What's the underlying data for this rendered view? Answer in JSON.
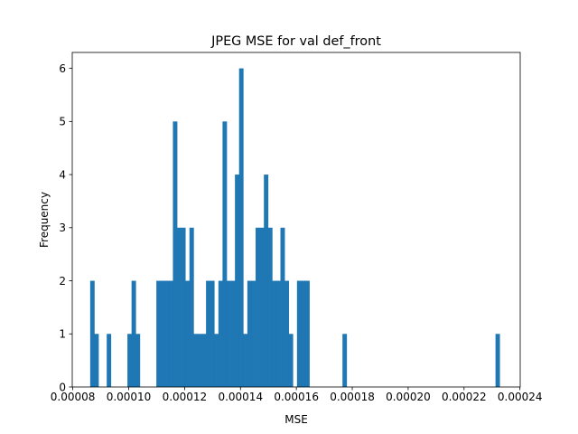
{
  "chart_data": {
    "type": "bar",
    "title": "JPEG MSE for val def_front",
    "xlabel": "MSE",
    "ylabel": "Frequency",
    "xlim": [
      7.98e-05,
      0.0002401
    ],
    "ylim": [
      0,
      6.3
    ],
    "xticks": [
      8e-05,
      0.0001,
      0.00012,
      0.00014,
      0.00016,
      0.00018,
      0.0002,
      0.00022,
      0.00024
    ],
    "xtick_labels": [
      "0.00008",
      "0.00010",
      "0.00012",
      "0.00014",
      "0.00016",
      "0.00018",
      "0.00020",
      "0.00022",
      "0.00024"
    ],
    "yticks": [
      0,
      1,
      2,
      3,
      4,
      5,
      6
    ],
    "ytick_labels": [
      "0",
      "1",
      "2",
      "3",
      "4",
      "5",
      "6"
    ],
    "bar_color": "#1f77b4",
    "bin_width": 1.48e-06,
    "bins_start": [
      8.622e-05,
      8.77e-05,
      8.918e-05,
      9.066e-05,
      9.214e-05,
      9.362e-05,
      9.51e-05,
      9.658e-05,
      9.806e-05,
      9.954e-05,
      0.00010102,
      0.0001025,
      0.00010398,
      0.00010546,
      0.00010694,
      0.00010842,
      0.0001099,
      0.00011138,
      0.00011286,
      0.00011434,
      0.00011582,
      0.0001173,
      0.00011878,
      0.00012026,
      0.00012174,
      0.00012322,
      0.0001247,
      0.00012618,
      0.00012766,
      0.00012914,
      0.00013062,
      0.0001321,
      0.00013358,
      0.00013506,
      0.00013654,
      0.00013802,
      0.0001395,
      0.00014098,
      0.00014246,
      0.00014394,
      0.00014542,
      0.0001469,
      0.00014838,
      0.00014986,
      0.00015134,
      0.00015282,
      0.0001543,
      0.00015578,
      0.00015726,
      0.00015874,
      0.00016022,
      0.0001617,
      0.00016318,
      0.00016466,
      0.00016614,
      0.00016762,
      0.0001691,
      0.00017058,
      0.00017206,
      0.00017354,
      0.00017502,
      0.0001765,
      0.00017798,
      0.00017946,
      0.00018094,
      0.00018242,
      0.0001839,
      0.00018538,
      0.00018686,
      0.00018834,
      0.00018982,
      0.0001913,
      0.00019278,
      0.00019426,
      0.00019574,
      0.00019722,
      0.0001987,
      0.00020018,
      0.00020166,
      0.00020314,
      0.00020462,
      0.0002061,
      0.00020758,
      0.00020906,
      0.00021054,
      0.00021202,
      0.0002135,
      0.00021498,
      0.00021646,
      0.00021794,
      0.00021942,
      0.0002209,
      0.00022238,
      0.00022386,
      0.00022534,
      0.00022682,
      0.0002283,
      0.00022978,
      0.00023126
    ],
    "counts": [
      2,
      1,
      0,
      0,
      1,
      0,
      0,
      0,
      0,
      1,
      2,
      1,
      0,
      0,
      0,
      0,
      2,
      2,
      2,
      2,
      5,
      3,
      3,
      2,
      3,
      1,
      1,
      1,
      2,
      2,
      1,
      2,
      5,
      2,
      2,
      4,
      6,
      1,
      2,
      2,
      3,
      3,
      4,
      3,
      2,
      2,
      3,
      2,
      1,
      0,
      2,
      2,
      2,
      0,
      0,
      0,
      0,
      0,
      0,
      0,
      0,
      1,
      0,
      0,
      0,
      0,
      0,
      0,
      0,
      0,
      0,
      0,
      0,
      0,
      0,
      0,
      0,
      0,
      0,
      0,
      0,
      0,
      0,
      0,
      0,
      0,
      0,
      0,
      0,
      0,
      0,
      0,
      0,
      0,
      0,
      0,
      0,
      0,
      1
    ]
  }
}
